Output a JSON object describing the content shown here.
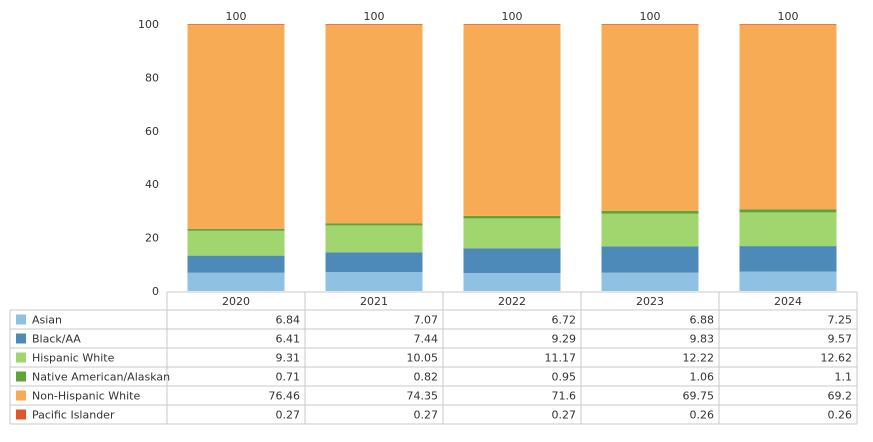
{
  "chart_data": {
    "type": "bar",
    "stacked": true,
    "categories": [
      "2020",
      "2021",
      "2022",
      "2023",
      "2024"
    ],
    "ylim": [
      0,
      100
    ],
    "yticks": [
      "0",
      "20",
      "40",
      "60",
      "80",
      "100"
    ],
    "grid": false,
    "legend": "data-table-left",
    "totals": [
      "100",
      "100",
      "100",
      "100",
      "100"
    ],
    "series": [
      {
        "name": "Asian",
        "color": "#8fc1e3",
        "values": [
          6.84,
          7.07,
          6.72,
          6.88,
          7.25
        ],
        "labels": [
          "6.84",
          "7.07",
          "6.72",
          "6.88",
          "7.25"
        ]
      },
      {
        "name": "Black/AA",
        "color": "#4d8ab9",
        "values": [
          6.41,
          7.44,
          9.29,
          9.83,
          9.57
        ],
        "labels": [
          "6.41",
          "7.44",
          "9.29",
          "9.83",
          "9.57"
        ]
      },
      {
        "name": "Hispanic White",
        "color": "#a1d66e",
        "values": [
          9.31,
          10.05,
          11.17,
          12.22,
          12.62
        ],
        "labels": [
          "9.31",
          "10.05",
          "11.17",
          "12.22",
          "12.62"
        ]
      },
      {
        "name": "Native American/Alaskan",
        "color": "#5ea437",
        "values": [
          0.71,
          0.82,
          0.95,
          1.06,
          1.1
        ],
        "labels": [
          "0.71",
          "0.82",
          "0.95",
          "1.06",
          "1.1"
        ]
      },
      {
        "name": "Non-Hispanic White",
        "color": "#f8ab55",
        "values": [
          76.46,
          74.35,
          71.6,
          69.75,
          69.2
        ],
        "labels": [
          "76.46",
          "74.35",
          "71.6",
          "69.75",
          "69.2"
        ]
      },
      {
        "name": "Pacific Islander",
        "color": "#e0562a",
        "values": [
          0.27,
          0.27,
          0.27,
          0.26,
          0.26
        ],
        "labels": [
          "0.27",
          "0.27",
          "0.27",
          "0.26",
          "0.26"
        ]
      }
    ]
  }
}
